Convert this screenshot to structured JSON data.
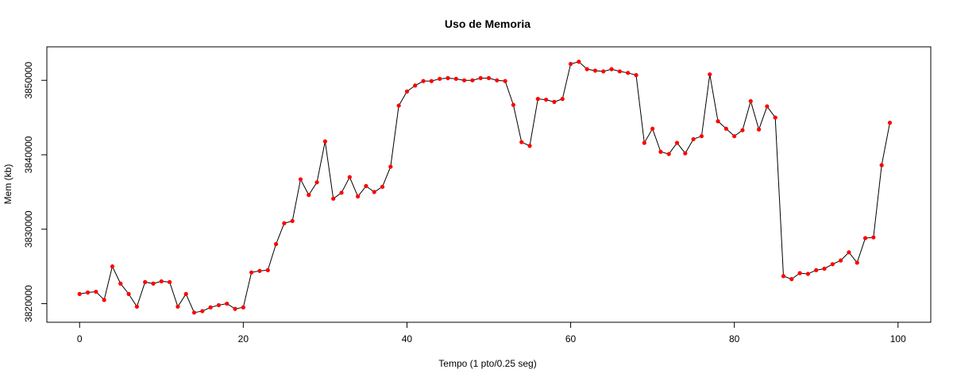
{
  "chart_data": {
    "type": "line",
    "title": "Uso de Memoria",
    "xlabel": "Tempo (1 pto/0.25 seg)",
    "ylabel": "Mem (kb)",
    "xlim": [
      -4,
      104
    ],
    "ylim": [
      3817500,
      3854500
    ],
    "x_ticks": [
      0,
      20,
      40,
      60,
      80,
      100
    ],
    "y_ticks": [
      3820000,
      3830000,
      3840000,
      3850000
    ],
    "line_color": "#000000",
    "point_color": "#ff0000",
    "grid": false,
    "legend": "none",
    "series": [
      {
        "x": [
          0,
          1,
          2,
          3,
          4,
          5,
          6,
          7,
          8,
          9,
          10,
          11,
          12,
          13,
          14,
          15,
          16,
          17,
          18,
          19,
          20,
          21,
          22,
          23,
          24,
          25,
          26,
          27,
          28,
          29,
          30,
          31,
          32,
          33,
          34,
          35,
          36,
          37,
          38,
          39,
          40,
          41,
          42,
          43,
          44,
          45,
          46,
          47,
          48,
          49,
          50,
          51,
          52,
          53,
          54,
          55,
          56,
          57,
          58,
          59,
          60,
          61,
          62,
          63,
          64,
          65,
          66,
          67,
          68,
          69,
          70,
          71,
          72,
          73,
          74,
          75,
          76,
          77,
          78,
          79,
          80,
          81,
          82,
          83,
          84,
          85,
          86,
          87,
          88,
          89,
          90,
          91,
          92,
          93,
          94,
          95,
          96,
          97,
          98,
          99
        ],
        "y": [
          3821300,
          3821500,
          3821600,
          3820500,
          3825000,
          3822700,
          3821300,
          3819600,
          3822900,
          3822700,
          3823000,
          3822900,
          3819600,
          3821300,
          3818800,
          3819000,
          3819500,
          3819800,
          3820000,
          3819300,
          3819500,
          3824200,
          3824400,
          3824500,
          3828000,
          3830800,
          3831100,
          3836700,
          3834600,
          3836300,
          3841800,
          3834100,
          3834900,
          3837000,
          3834400,
          3835800,
          3835000,
          3835700,
          3838400,
          3846600,
          3848500,
          3849300,
          3849900,
          3849900,
          3850200,
          3850300,
          3850200,
          3850000,
          3850000,
          3850300,
          3850300,
          3850000,
          3849900,
          3846700,
          3841700,
          3841200,
          3847500,
          3847400,
          3847100,
          3847500,
          3852200,
          3852500,
          3851500,
          3851300,
          3851200,
          3851500,
          3851200,
          3851000,
          3850700,
          3841600,
          3843500,
          3840400,
          3840100,
          3841600,
          3840200,
          3842100,
          3842500,
          3850800,
          3844500,
          3843500,
          3842500,
          3843300,
          3847200,
          3843400,
          3846500,
          3845000,
          3823700,
          3823300,
          3824100,
          3824000,
          3824500,
          3824700,
          3825300,
          3825800,
          3826900,
          3825500,
          3828800,
          3828900,
          3838600,
          3844300
        ]
      }
    ]
  }
}
